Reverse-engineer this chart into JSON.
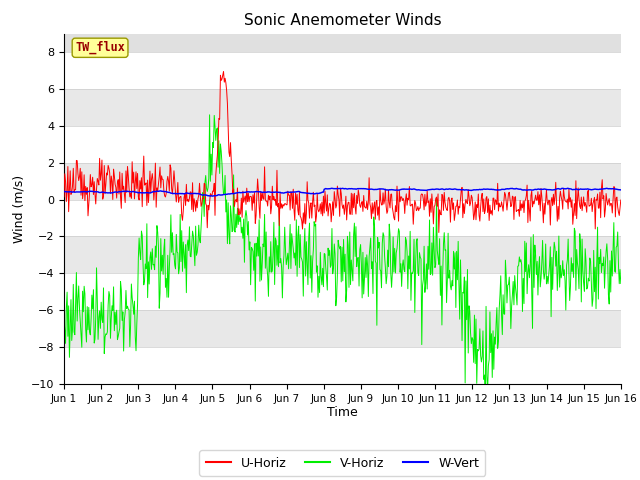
{
  "title": "Sonic Anemometer Winds",
  "xlabel": "Time",
  "ylabel": "Wind (m/s)",
  "ylim": [
    -10,
    9
  ],
  "yticks": [
    -10,
    -8,
    -6,
    -4,
    -2,
    0,
    2,
    4,
    6,
    8
  ],
  "n_days": 15,
  "n_per_day": 48,
  "x_tick_labels": [
    "Jun 1",
    "Jun 2",
    "Jun 3",
    "Jun 4",
    "Jun 5",
    "Jun 6",
    "Jun 7",
    "Jun 8",
    "Jun 9",
    "Jun 10",
    "Jun 11",
    "Jun 12",
    "Jun 13",
    "Jun 14",
    "Jun 15",
    "Jun 16"
  ],
  "colors": {
    "U": "#ff0000",
    "V": "#00ee00",
    "W": "#0000ff",
    "bg_plot": "#e0e0e0",
    "bg_fig": "#ffffff",
    "grid_light": "#f0f0f0",
    "grid_dark": "#d0d0d0",
    "annotation_bg": "#ffff99",
    "annotation_border": "#999900",
    "annotation_text": "#990000"
  },
  "legend_labels": [
    "U-Horiz",
    "V-Horiz",
    "W-Vert"
  ],
  "annotation_text": "TW_flux",
  "linewidth": 0.7,
  "seed": 123
}
